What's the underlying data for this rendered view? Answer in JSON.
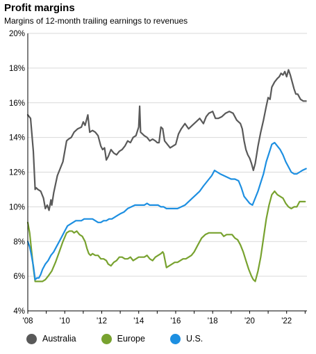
{
  "chart_data": {
    "type": "line",
    "title": "Profit margins",
    "subtitle": "Margins of 12-month trailing earnings to revenues",
    "xlabel": "",
    "ylabel": "",
    "xlim": [
      2008.0,
      2023.1
    ],
    "ylim": [
      4,
      20
    ],
    "y_ticks": [
      4,
      6,
      8,
      10,
      12,
      14,
      16,
      18,
      20
    ],
    "y_tick_labels": [
      "4%",
      "6%",
      "8%",
      "10%",
      "12%",
      "14%",
      "16%",
      "18%",
      "20%"
    ],
    "x_ticks": [
      2008,
      2010,
      2012,
      2014,
      2016,
      2018,
      2020,
      2022
    ],
    "x_tick_labels": [
      "'08",
      "'10",
      "'12",
      "'14",
      "'16",
      "'18",
      "'20",
      "'22"
    ],
    "grid": "horizontal",
    "legend_position": "bottom-left",
    "series": [
      {
        "name": "Australia",
        "color": "#595959",
        "x": [
          2008.0,
          2008.15,
          2008.3,
          2008.4,
          2008.45,
          2008.55,
          2008.7,
          2008.85,
          2008.95,
          2009.05,
          2009.15,
          2009.25,
          2009.3,
          2009.4,
          2009.6,
          2009.9,
          2010.1,
          2010.2,
          2010.35,
          2010.5,
          2010.7,
          2010.9,
          2011.0,
          2011.1,
          2011.25,
          2011.35,
          2011.5,
          2011.65,
          2011.8,
          2011.95,
          2012.05,
          2012.15,
          2012.25,
          2012.35,
          2012.5,
          2012.65,
          2012.8,
          2012.95,
          2013.1,
          2013.25,
          2013.4,
          2013.55,
          2013.7,
          2013.85,
          2014.0,
          2014.05,
          2014.1,
          2014.2,
          2014.3,
          2014.45,
          2014.6,
          2014.75,
          2014.9,
          2015.0,
          2015.1,
          2015.2,
          2015.3,
          2015.4,
          2015.55,
          2015.7,
          2015.85,
          2016.0,
          2016.15,
          2016.3,
          2016.5,
          2016.7,
          2016.9,
          2017.1,
          2017.3,
          2017.5,
          2017.65,
          2017.8,
          2018.0,
          2018.15,
          2018.3,
          2018.5,
          2018.7,
          2018.9,
          2019.1,
          2019.3,
          2019.5,
          2019.6,
          2019.7,
          2019.8,
          2019.9,
          2020.0,
          2020.1,
          2020.2,
          2020.3,
          2020.45,
          2020.6,
          2020.75,
          2020.9,
          2021.0,
          2021.1,
          2021.2,
          2021.35,
          2021.5,
          2021.6,
          2021.7,
          2021.8,
          2021.9,
          2022.0,
          2022.1,
          2022.2,
          2022.3,
          2022.4,
          2022.5,
          2022.6,
          2022.75,
          2022.9,
          2023.05
        ],
        "values": [
          15.3,
          15.1,
          13.2,
          11.0,
          11.1,
          11.0,
          10.9,
          10.5,
          9.9,
          10.1,
          9.8,
          10.4,
          10.1,
          10.8,
          11.8,
          12.6,
          13.8,
          13.9,
          14.0,
          14.3,
          14.5,
          14.6,
          14.9,
          14.7,
          15.3,
          14.3,
          14.4,
          14.3,
          14.1,
          13.5,
          13.3,
          13.4,
          12.7,
          12.9,
          13.3,
          13.1,
          13.0,
          13.2,
          13.3,
          13.5,
          13.8,
          13.7,
          14.0,
          14.1,
          14.6,
          15.8,
          14.3,
          14.2,
          14.1,
          14.0,
          13.8,
          13.9,
          13.8,
          13.7,
          13.7,
          14.6,
          14.5,
          13.8,
          13.6,
          13.4,
          13.5,
          13.6,
          14.2,
          14.5,
          14.8,
          14.5,
          14.7,
          14.9,
          15.1,
          14.8,
          15.2,
          15.4,
          15.5,
          15.1,
          15.1,
          15.2,
          15.4,
          15.5,
          15.4,
          15.0,
          14.8,
          14.5,
          13.8,
          13.3,
          13.0,
          12.8,
          12.5,
          12.1,
          12.5,
          13.5,
          14.3,
          15.0,
          15.8,
          16.3,
          16.2,
          16.9,
          17.2,
          17.4,
          17.5,
          17.7,
          17.6,
          17.8,
          17.5,
          17.9,
          17.6,
          17.2,
          16.8,
          16.5,
          16.5,
          16.2,
          16.1,
          16.1
        ]
      },
      {
        "name": "Europe",
        "color": "#78a22f",
        "x": [
          2008.0,
          2008.1,
          2008.2,
          2008.3,
          2008.4,
          2008.5,
          2008.65,
          2008.8,
          2008.95,
          2009.1,
          2009.3,
          2009.5,
          2009.7,
          2009.9,
          2010.1,
          2010.25,
          2010.4,
          2010.5,
          2010.65,
          2010.8,
          2010.95,
          2011.1,
          2011.2,
          2011.3,
          2011.4,
          2011.5,
          2011.65,
          2011.8,
          2011.95,
          2012.1,
          2012.25,
          2012.35,
          2012.5,
          2012.65,
          2012.8,
          2012.95,
          2013.1,
          2013.25,
          2013.4,
          2013.55,
          2013.7,
          2013.85,
          2014.0,
          2014.15,
          2014.3,
          2014.45,
          2014.6,
          2014.75,
          2014.9,
          2015.05,
          2015.2,
          2015.3,
          2015.35,
          2015.5,
          2015.65,
          2015.8,
          2015.95,
          2016.1,
          2016.25,
          2016.4,
          2016.55,
          2016.7,
          2016.85,
          2017.0,
          2017.2,
          2017.4,
          2017.6,
          2017.8,
          2018.0,
          2018.15,
          2018.3,
          2018.45,
          2018.6,
          2018.75,
          2018.9,
          2019.05,
          2019.2,
          2019.35,
          2019.5,
          2019.65,
          2019.8,
          2019.95,
          2020.1,
          2020.2,
          2020.3,
          2020.45,
          2020.6,
          2020.75,
          2020.9,
          2021.05,
          2021.2,
          2021.35,
          2021.5,
          2021.65,
          2021.8,
          2021.95,
          2022.1,
          2022.25,
          2022.4,
          2022.55,
          2022.7,
          2022.85,
          2023.0
        ],
        "values": [
          9.1,
          8.5,
          7.5,
          6.5,
          5.7,
          5.7,
          5.7,
          5.7,
          5.8,
          6.0,
          6.3,
          6.8,
          7.4,
          8.0,
          8.5,
          8.6,
          8.6,
          8.5,
          8.6,
          8.4,
          8.3,
          8.0,
          7.6,
          7.3,
          7.2,
          7.3,
          7.2,
          7.2,
          7.0,
          7.0,
          6.9,
          6.7,
          6.6,
          6.8,
          6.9,
          7.1,
          7.1,
          7.0,
          7.0,
          7.1,
          6.9,
          7.0,
          7.1,
          7.1,
          7.1,
          7.2,
          7.0,
          6.9,
          7.1,
          7.2,
          7.3,
          7.4,
          7.3,
          6.5,
          6.6,
          6.7,
          6.8,
          6.8,
          6.9,
          7.0,
          7.0,
          7.1,
          7.2,
          7.4,
          7.8,
          8.2,
          8.4,
          8.5,
          8.5,
          8.5,
          8.5,
          8.5,
          8.3,
          8.4,
          8.4,
          8.4,
          8.2,
          8.1,
          7.8,
          7.4,
          6.9,
          6.4,
          6.0,
          5.8,
          5.7,
          6.3,
          7.1,
          8.2,
          9.3,
          10.1,
          10.7,
          10.9,
          10.7,
          10.6,
          10.5,
          10.2,
          10.0,
          9.9,
          10.0,
          10.0,
          10.3,
          10.3,
          10.3
        ]
      },
      {
        "name": "U.S.",
        "color": "#1d8fe1",
        "x": [
          2008.0,
          2008.1,
          2008.2,
          2008.3,
          2008.4,
          2008.5,
          2008.6,
          2008.7,
          2008.8,
          2008.95,
          2009.1,
          2009.25,
          2009.4,
          2009.55,
          2009.7,
          2009.85,
          2010.0,
          2010.15,
          2010.3,
          2010.45,
          2010.6,
          2010.75,
          2010.9,
          2011.05,
          2011.2,
          2011.35,
          2011.5,
          2011.65,
          2011.8,
          2011.95,
          2012.1,
          2012.25,
          2012.4,
          2012.55,
          2012.7,
          2012.85,
          2013.0,
          2013.2,
          2013.4,
          2013.6,
          2013.8,
          2014.0,
          2014.15,
          2014.3,
          2014.45,
          2014.6,
          2014.75,
          2014.9,
          2015.05,
          2015.2,
          2015.35,
          2015.5,
          2015.7,
          2015.9,
          2016.1,
          2016.3,
          2016.5,
          2016.7,
          2016.9,
          2017.1,
          2017.3,
          2017.5,
          2017.65,
          2017.8,
          2017.95,
          2018.1,
          2018.25,
          2018.4,
          2018.6,
          2018.8,
          2019.0,
          2019.2,
          2019.4,
          2019.55,
          2019.7,
          2019.85,
          2020.0,
          2020.15,
          2020.3,
          2020.45,
          2020.6,
          2020.75,
          2020.9,
          2021.05,
          2021.2,
          2021.35,
          2021.5,
          2021.65,
          2021.8,
          2021.95,
          2022.1,
          2022.25,
          2022.4,
          2022.55,
          2022.7,
          2022.85,
          2023.05
        ],
        "values": [
          8.0,
          7.7,
          7.2,
          6.6,
          5.8,
          5.9,
          5.9,
          6.1,
          6.4,
          6.7,
          6.9,
          7.2,
          7.4,
          7.7,
          8.0,
          8.3,
          8.6,
          8.9,
          9.0,
          9.1,
          9.2,
          9.2,
          9.2,
          9.3,
          9.3,
          9.3,
          9.3,
          9.2,
          9.1,
          9.1,
          9.2,
          9.2,
          9.3,
          9.3,
          9.4,
          9.5,
          9.6,
          9.7,
          9.9,
          10.0,
          10.1,
          10.1,
          10.1,
          10.1,
          10.2,
          10.1,
          10.1,
          10.1,
          10.1,
          10.0,
          10.0,
          9.9,
          9.9,
          9.9,
          9.9,
          10.0,
          10.1,
          10.3,
          10.5,
          10.7,
          10.9,
          11.2,
          11.4,
          11.6,
          11.8,
          12.1,
          12.0,
          11.9,
          11.8,
          11.7,
          11.6,
          11.6,
          11.5,
          11.1,
          10.6,
          10.4,
          10.2,
          10.1,
          10.5,
          10.9,
          11.4,
          11.9,
          12.6,
          13.1,
          13.6,
          13.7,
          13.5,
          13.3,
          13.0,
          12.6,
          12.3,
          12.0,
          11.9,
          11.9,
          12.0,
          12.1,
          12.2
        ]
      }
    ]
  }
}
